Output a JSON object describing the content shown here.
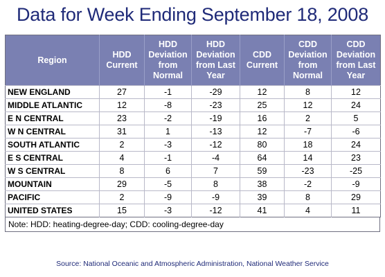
{
  "title": "Data for Week Ending September 18, 2008",
  "table": {
    "headers": [
      "Region",
      "HDD Current",
      "HDD Deviation from Normal",
      "HDD Deviation from Last Year",
      "CDD Current",
      "CDD Deviation from Normal",
      "CDD Deviation from Last Year"
    ],
    "rows": [
      [
        "NEW ENGLAND",
        "27",
        "-1",
        "-29",
        "12",
        "8",
        "12"
      ],
      [
        "MIDDLE ATLANTIC",
        "12",
        "-8",
        "-23",
        "25",
        "12",
        "24"
      ],
      [
        "E N CENTRAL",
        "23",
        "-2",
        "-19",
        "16",
        "2",
        "5"
      ],
      [
        "W N CENTRAL",
        "31",
        "1",
        "-13",
        "12",
        "-7",
        "-6"
      ],
      [
        "SOUTH ATLANTIC",
        "2",
        "-3",
        "-12",
        "80",
        "18",
        "24"
      ],
      [
        "E S CENTRAL",
        "4",
        "-1",
        "-4",
        "64",
        "14",
        "23"
      ],
      [
        "W S CENTRAL",
        "8",
        "6",
        "7",
        "59",
        "-23",
        "-25"
      ],
      [
        "MOUNTAIN",
        "29",
        "-5",
        "8",
        "38",
        "-2",
        "-9"
      ],
      [
        "PACIFIC",
        "2",
        "-9",
        "-9",
        "39",
        "8",
        "29"
      ],
      [
        "UNITED STATES",
        "15",
        "-3",
        "-12",
        "41",
        "4",
        "11"
      ]
    ]
  },
  "note": "Note: HDD: heating-degree-day; CDD: cooling-degree-day",
  "source": "Source:  National Oceanic and Atmospheric Administration, National Weather Service",
  "colors": {
    "title": "#1f2a78",
    "header_bg": "#7a80b2",
    "header_text": "#ffffff",
    "source_text": "#1f2a78"
  }
}
